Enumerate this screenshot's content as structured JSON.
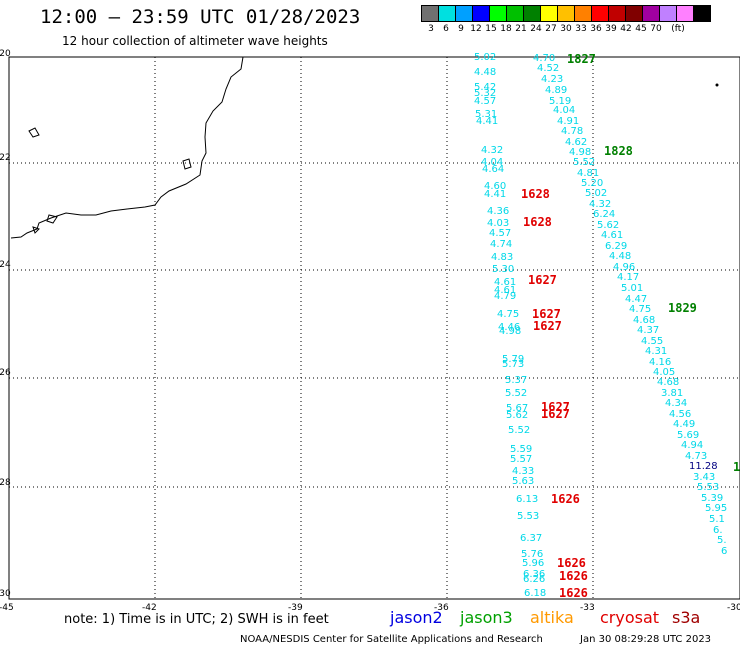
{
  "header": {
    "title": "12:00 — 23:59 UTC 01/28/2023",
    "subtitle": "12 hour collection of altimeter wave heights"
  },
  "color_scale": {
    "unit": "(ft)",
    "stops": [
      {
        "label": "3",
        "color": "#707070"
      },
      {
        "label": "6",
        "color": "#00e0e0"
      },
      {
        "label": "9",
        "color": "#00a0ff"
      },
      {
        "label": "12",
        "color": "#0000ff"
      },
      {
        "label": "15",
        "color": "#00ff00"
      },
      {
        "label": "18",
        "color": "#00c000"
      },
      {
        "label": "21",
        "color": "#008000"
      },
      {
        "label": "24",
        "color": "#ffff00"
      },
      {
        "label": "27",
        "color": "#ffc000"
      },
      {
        "label": "30",
        "color": "#ff8000"
      },
      {
        "label": "33",
        "color": "#ff0000"
      },
      {
        "label": "36",
        "color": "#c00000"
      },
      {
        "label": "39",
        "color": "#800000"
      },
      {
        "label": "42",
        "color": "#a000a0"
      },
      {
        "label": "45",
        "color": "#c080ff"
      },
      {
        "label": "70",
        "color": "#ff80ff"
      },
      {
        "label": "",
        "color": "#000000"
      }
    ]
  },
  "map": {
    "lat_labels": [
      "-20",
      "-22",
      "-24",
      "-26",
      "-28",
      "-30"
    ],
    "lon_labels": [
      "-45",
      "-42",
      "-39",
      "-36",
      "-33",
      "-30"
    ]
  },
  "tracks": {
    "track_a": [
      {
        "v": "5.02"
      },
      {
        "v": "4.48"
      },
      {
        "v": "5.42"
      },
      {
        "v": "5.32"
      },
      {
        "v": "4.57"
      },
      {
        "v": "5.31"
      },
      {
        "v": "4.41"
      },
      {
        "v": "4.32"
      },
      {
        "v": "4.04"
      },
      {
        "v": "4.64"
      },
      {
        "v": "4.60"
      },
      {
        "v": "4.41"
      },
      {
        "v": "4.36"
      },
      {
        "v": "4.03"
      },
      {
        "v": "4.57"
      },
      {
        "v": "4.74"
      },
      {
        "v": "4.83"
      },
      {
        "v": "5.30"
      },
      {
        "v": "4.61"
      },
      {
        "v": "4.61"
      },
      {
        "v": "4.79"
      },
      {
        "v": "4.75"
      },
      {
        "v": "4.46"
      },
      {
        "v": "4.98"
      },
      {
        "v": "5.79"
      },
      {
        "v": "5.73"
      },
      {
        "v": "5.37"
      },
      {
        "v": "5.52"
      },
      {
        "v": "5.67"
      },
      {
        "v": "5.62"
      },
      {
        "v": "5.52"
      },
      {
        "v": "5.59"
      },
      {
        "v": "5.57"
      },
      {
        "v": "4.33"
      },
      {
        "v": "5.63"
      },
      {
        "v": "6.13"
      },
      {
        "v": "5.53"
      },
      {
        "v": "6.37"
      },
      {
        "v": "5.76"
      },
      {
        "v": "5.96"
      },
      {
        "v": "6.36"
      },
      {
        "v": "6.26"
      },
      {
        "v": "6.18"
      }
    ],
    "track_b": [
      {
        "v": "4.70"
      },
      {
        "v": "4.52"
      },
      {
        "v": "4.23"
      },
      {
        "v": "4.89"
      },
      {
        "v": "5.19"
      },
      {
        "v": "4.04"
      },
      {
        "v": "4.91"
      },
      {
        "v": "4.78"
      },
      {
        "v": "4.62"
      },
      {
        "v": "4.98"
      },
      {
        "v": "5.52"
      },
      {
        "v": "4.81"
      },
      {
        "v": "5.20"
      },
      {
        "v": "5.02"
      },
      {
        "v": "4.32"
      },
      {
        "v": "6.24"
      },
      {
        "v": "5.62"
      },
      {
        "v": "4.61"
      },
      {
        "v": "6.29"
      },
      {
        "v": "4.48"
      },
      {
        "v": "4.96"
      },
      {
        "v": "4.17"
      },
      {
        "v": "5.01"
      },
      {
        "v": "4.47"
      },
      {
        "v": "4.75"
      },
      {
        "v": "4.68"
      },
      {
        "v": "4.37"
      },
      {
        "v": "4.55"
      },
      {
        "v": "4.31"
      },
      {
        "v": "4.16"
      },
      {
        "v": "4.05"
      },
      {
        "v": "4.68"
      },
      {
        "v": "3.81"
      },
      {
        "v": "4.34"
      },
      {
        "v": "4.56"
      },
      {
        "v": "4.49"
      },
      {
        "v": "5.69"
      },
      {
        "v": "4.94"
      },
      {
        "v": "4.73"
      },
      {
        "v": "11.28"
      },
      {
        "v": "3.43"
      },
      {
        "v": "5.53"
      },
      {
        "v": "5.39"
      },
      {
        "v": "5.95"
      },
      {
        "v": "5.1"
      },
      {
        "v": "6."
      },
      {
        "v": "5."
      },
      {
        "v": "6"
      }
    ]
  },
  "time_labels": [
    {
      "t": "1827",
      "color": "#008000"
    },
    {
      "t": "1828",
      "color": "#008000"
    },
    {
      "t": "1628",
      "color": "#e00000"
    },
    {
      "t": "1628",
      "color": "#e00000"
    },
    {
      "t": "1627",
      "color": "#e00000"
    },
    {
      "t": "1627",
      "color": "#e00000"
    },
    {
      "t": "1627",
      "color": "#e00000"
    },
    {
      "t": "1829",
      "color": "#008000"
    },
    {
      "t": "1627",
      "color": "#e00000"
    },
    {
      "t": "1627",
      "color": "#e00000"
    },
    {
      "t": "1626",
      "color": "#e00000"
    },
    {
      "t": "1626",
      "color": "#e00000"
    },
    {
      "t": "1626",
      "color": "#e00000"
    },
    {
      "t": "1626",
      "color": "#e00000"
    },
    {
      "t": "1",
      "color": "#008000"
    }
  ],
  "footer": {
    "note": "note:  1) Time is in UTC;  2) SWH is in feet",
    "satellites": [
      {
        "name": "jason2",
        "color": "#0000e0"
      },
      {
        "name": "jason3",
        "color": "#00a000"
      },
      {
        "name": "altika",
        "color": "#ff9900"
      },
      {
        "name": "cryosat",
        "color": "#e00000"
      },
      {
        "name": "s3a",
        "color": "#a00000"
      }
    ],
    "credit": "NOAA/NESDIS Center for Satellite Applications and Research",
    "timestamp": "Jan 30 08:29:28 UTC 2023"
  }
}
